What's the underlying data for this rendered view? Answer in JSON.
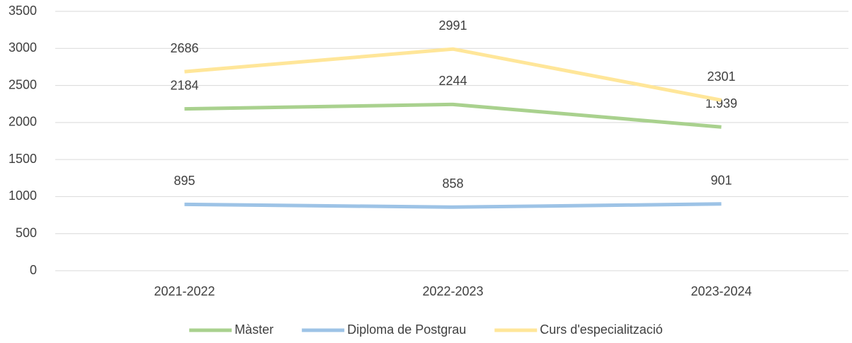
{
  "chart_data": {
    "type": "line",
    "categories": [
      "2021-2022",
      "2022-2023",
      "2023-2024"
    ],
    "series": [
      {
        "name": "Màster",
        "color": "#a9d18e",
        "values": [
          2184,
          2244,
          1939
        ],
        "value_labels": [
          "2184",
          "2244",
          "1.939"
        ]
      },
      {
        "name": "Diploma de Postgrau",
        "color": "#9dc3e6",
        "values": [
          895,
          858,
          901
        ]
      },
      {
        "name": "Curs d'especialització",
        "color": "#ffe699",
        "values": [
          2686,
          2991,
          2301
        ]
      }
    ],
    "ylim": [
      0,
      3500
    ],
    "yticks": [
      0,
      500,
      1000,
      1500,
      2000,
      2500,
      3000,
      3500
    ],
    "grid": true,
    "legend": "bottom"
  }
}
